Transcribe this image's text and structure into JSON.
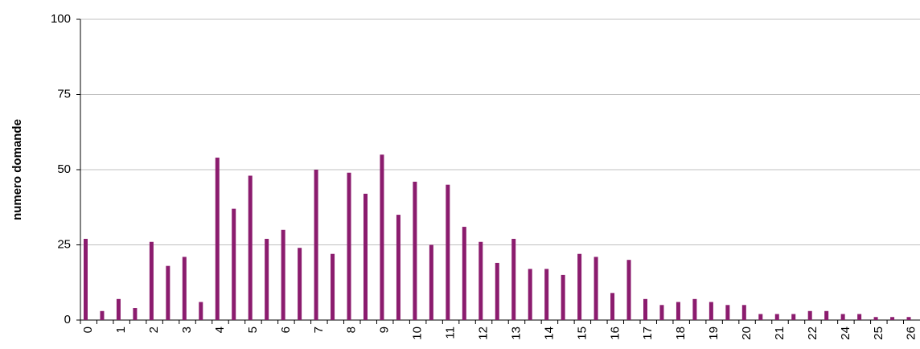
{
  "chart_data": {
    "type": "bar",
    "y_label": "numero domande",
    "categories": [
      "0",
      null,
      "1",
      null,
      "2",
      null,
      "3",
      null,
      "4",
      null,
      "5",
      null,
      "6",
      null,
      "7",
      null,
      "8",
      null,
      "9",
      null,
      "10",
      null,
      "11",
      null,
      "12",
      null,
      "13",
      null,
      "14",
      null,
      "15",
      null,
      "16",
      null,
      "17",
      null,
      "18",
      null,
      "19",
      null,
      "20",
      null,
      "21",
      null,
      "22",
      null,
      "24",
      null,
      "25",
      null,
      "26"
    ],
    "values": [
      27,
      3,
      7,
      4,
      26,
      18,
      21,
      6,
      54,
      37,
      48,
      27,
      30,
      24,
      50,
      22,
      49,
      42,
      55,
      35,
      46,
      25,
      45,
      31,
      26,
      19,
      27,
      17,
      17,
      15,
      22,
      21,
      9,
      20,
      7,
      5,
      6,
      7,
      6,
      5,
      5,
      2,
      2,
      2,
      3,
      3,
      2,
      2,
      1,
      1,
      1
    ],
    "color": "#8b1c6e",
    "ylim": [
      0,
      100
    ],
    "yticks": [
      0,
      25,
      50,
      75,
      100
    ],
    "grid": true
  }
}
